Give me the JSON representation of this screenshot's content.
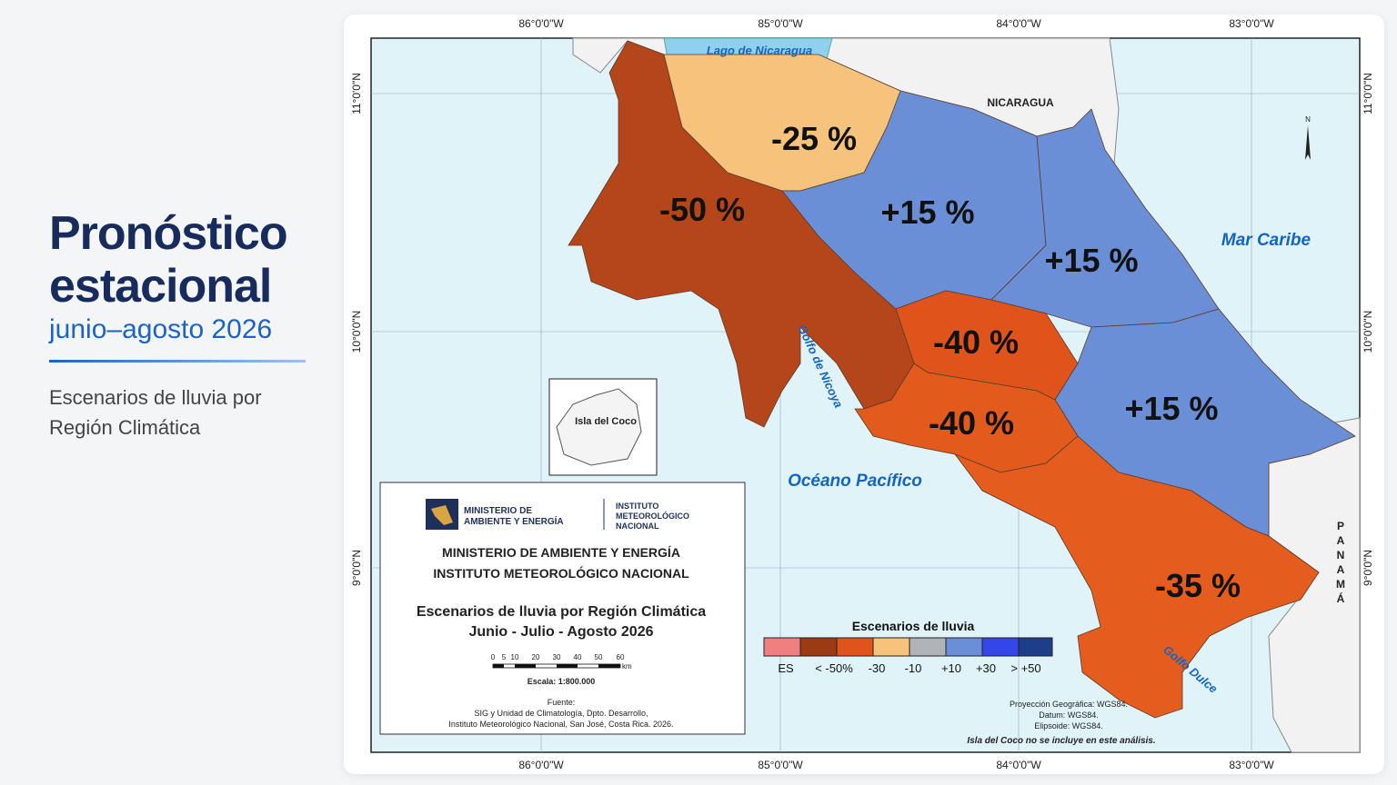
{
  "header": {
    "title_line1": "Pronóstico",
    "title_line2": "estacional",
    "subtitle": "junio–agosto 2026",
    "description_line1": "Escenarios de lluvia por",
    "description_line2": "Región Climática"
  },
  "map": {
    "lon_labels": [
      "86°0'0\"W",
      "85°0'0\"W",
      "84°0'0\"W",
      "83°0'0\"W"
    ],
    "lat_labels": [
      "11°0'0\"N",
      "10°0'0\"N",
      "9°0'0\"N"
    ],
    "places": {
      "lake": "Lago de Nicaragua",
      "nicaragua": "NICARAGUA",
      "caribbean": "Mar Caribe",
      "pacific": "Océano Pacífico",
      "nicoya": "Golfo de Nicoya",
      "dulce": "Golfo Dulce",
      "panama": "PANAMÁ",
      "coco": "Isla del Coco",
      "north": "N"
    },
    "regions": {
      "norte_norte": "-25 %",
      "pacifico_norte": "-50 %",
      "zona_norte": "+15 %",
      "caribe_norte": "+15 %",
      "valle_central": "-40 %",
      "pacifico_central": "-40 %",
      "caribe_sur": "+15 %",
      "pacifico_sur": "-35 %"
    }
  },
  "info_box": {
    "logo_left_1": "MINISTERIO DE",
    "logo_left_2": "AMBIENTE Y ENERGÍA",
    "logo_right_1": "INSTITUTO",
    "logo_right_2": "METEOROLÓGICO",
    "logo_right_3": "NACIONAL",
    "org_1": "MINISTERIO DE AMBIENTE Y ENERGÍA",
    "org_2": "INSTITUTO METEOROLÓGICO NACIONAL",
    "title_1": "Escenarios de lluvia por Región Climática",
    "title_2": "Junio - Julio - Agosto 2026",
    "scale_labels": [
      "0",
      "5",
      "10",
      "20",
      "30",
      "40",
      "50",
      "60"
    ],
    "scale_unit": "km",
    "scale_text": "Escala: 1:800.000",
    "source_title": "Fuente:",
    "source_1": "SIG y Unidad de Climatología, Dpto. Desarrollo,",
    "source_2": "Instituto Meteorológico Nacional, San José, Costa Rica. 2026."
  },
  "legend": {
    "title": "Escenarios de lluvia",
    "labels": [
      "ES",
      "< -50%",
      "-30",
      "-10",
      "+10",
      "+30",
      "> +50"
    ]
  },
  "footnotes": [
    "Proyección Geográfica: WGS84.",
    "Datum: WGS84.",
    "Elipsoide: WGS84.",
    "Isla del Coco no se incluye en este análisis."
  ]
}
